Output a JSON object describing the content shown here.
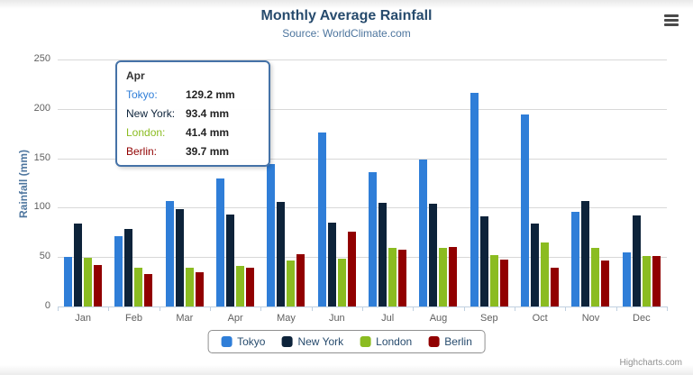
{
  "header": {
    "title": "Monthly Average Rainfall",
    "subtitle": "Source: WorldClimate.com"
  },
  "chart_data": {
    "type": "bar",
    "title": "Monthly Average Rainfall",
    "subtitle": "Source: WorldClimate.com",
    "categories": [
      "Jan",
      "Feb",
      "Mar",
      "Apr",
      "May",
      "Jun",
      "Jul",
      "Aug",
      "Sep",
      "Oct",
      "Nov",
      "Dec"
    ],
    "series": [
      {
        "name": "Tokyo",
        "color": "#2f7ed8",
        "values": [
          49.9,
          71.5,
          106.4,
          129.2,
          144.0,
          176.0,
          135.6,
          148.5,
          216.4,
          194.1,
          95.6,
          54.4
        ]
      },
      {
        "name": "New York",
        "color": "#0d233a",
        "values": [
          83.6,
          78.8,
          98.5,
          93.4,
          106.0,
          84.5,
          105.0,
          104.3,
          91.2,
          83.5,
          106.6,
          92.3
        ]
      },
      {
        "name": "London",
        "color": "#8bbc21",
        "values": [
          48.9,
          38.8,
          39.3,
          41.4,
          47.0,
          48.3,
          59.0,
          59.6,
          52.4,
          65.2,
          59.3,
          51.2
        ]
      },
      {
        "name": "Berlin",
        "color": "#910000",
        "values": [
          42.4,
          33.2,
          34.5,
          39.7,
          52.6,
          75.5,
          57.4,
          60.4,
          47.6,
          39.1,
          46.8,
          51.1
        ]
      }
    ],
    "xlabel": "",
    "ylabel": "Rainfall (mm)",
    "ylim": [
      0,
      250
    ],
    "yticks": [
      0,
      50,
      100,
      150,
      200,
      250
    ],
    "grid": true,
    "legend_position": "bottom"
  },
  "tooltip": {
    "header": "Apr",
    "border_color": "#4572a7",
    "rows": [
      {
        "series": "Tokyo",
        "label": "Tokyo:",
        "value": "129.2 mm"
      },
      {
        "series": "New York",
        "label": "New York:",
        "value": "93.4 mm"
      },
      {
        "series": "London",
        "label": "London:",
        "value": "41.4 mm"
      },
      {
        "series": "Berlin",
        "label": "Berlin:",
        "value": "39.7 mm"
      }
    ]
  },
  "credits": "Highcharts.com"
}
